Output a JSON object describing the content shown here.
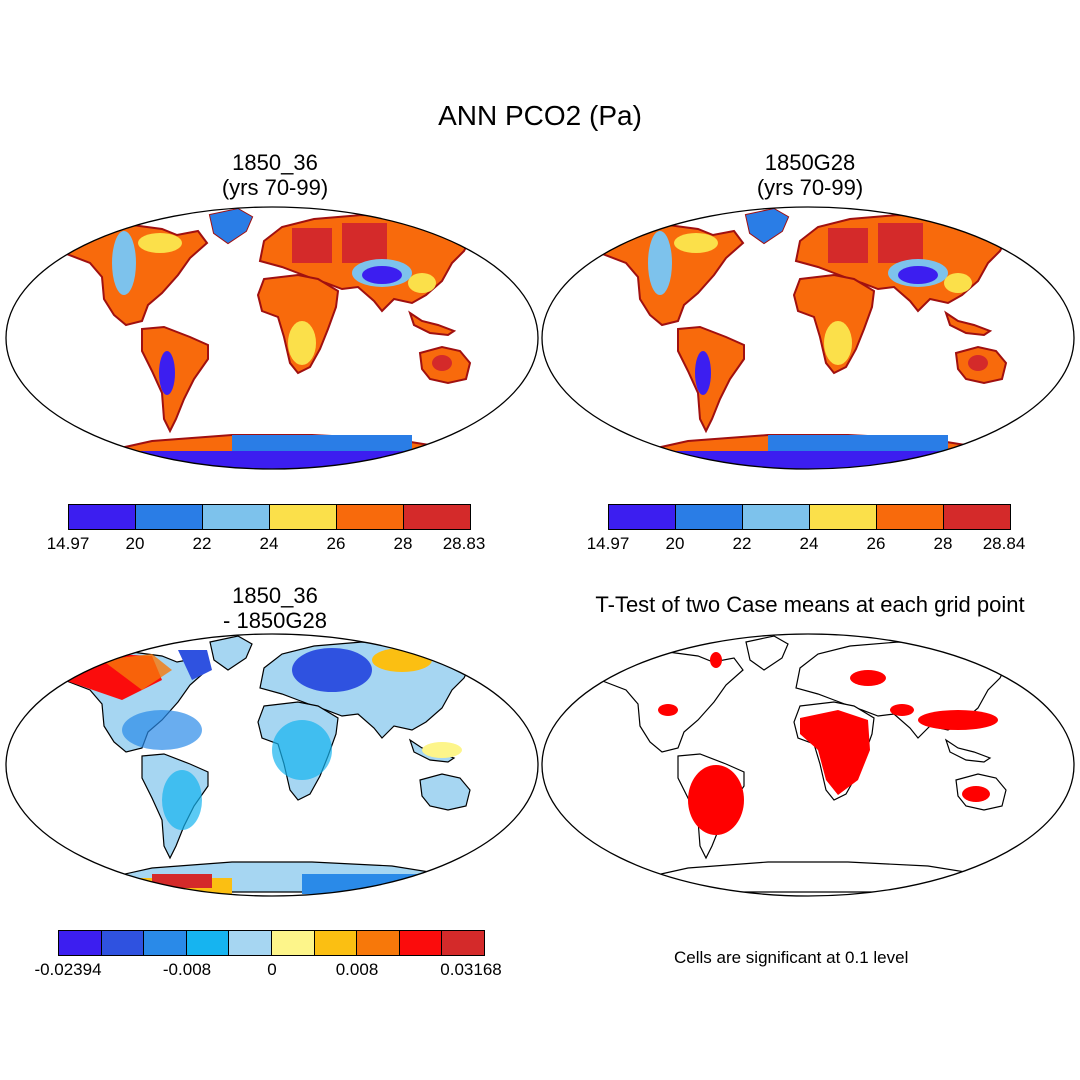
{
  "title": "ANN PCO2 (Pa)",
  "panels": {
    "top_left": {
      "title_line1": "1850_36",
      "title_line2": "(yrs 70-99)"
    },
    "top_right": {
      "title_line1": "1850G28",
      "title_line2": "(yrs 70-99)"
    },
    "bottom_left": {
      "title_line1": "1850_36",
      "title_line2": "- 1850G28"
    },
    "bottom_right": {
      "title_line1": "T-Test of two Case means at each grid point"
    }
  },
  "colorbars": {
    "abs_left": {
      "colors": [
        "#3c1ef0",
        "#2a7de6",
        "#7dc2ec",
        "#fbe04a",
        "#f86a0c",
        "#d42a2a"
      ],
      "labels": [
        "14.97",
        "20",
        "22",
        "24",
        "26",
        "28",
        "28.83"
      ]
    },
    "abs_right": {
      "colors": [
        "#3c1ef0",
        "#2a7de6",
        "#7dc2ec",
        "#fbe04a",
        "#f86a0c",
        "#d42a2a"
      ],
      "labels": [
        "14.97",
        "20",
        "22",
        "24",
        "26",
        "28",
        "28.84"
      ]
    },
    "diff": {
      "colors": [
        "#3c1ef0",
        "#2f52e0",
        "#2a8ae8",
        "#16b4f0",
        "#a6d6f2",
        "#fdf58a",
        "#fbbf12",
        "#f7780a",
        "#fb0c0c",
        "#d42a2a"
      ],
      "labels": [
        "-0.02394",
        "-0.008",
        "0",
        "0.008",
        "0.03168"
      ]
    }
  },
  "note": "Cells are significant at 0.1 level",
  "palette": {
    "land_mid": "#f86a0c",
    "land_high": "#d42a2a",
    "land_yellow": "#fbe04a",
    "ice_blue": "#3c1ef0",
    "light_blue": "#7dc2ec",
    "diff_blue": "#a6d6f2",
    "sig_red": "#ff0000"
  }
}
